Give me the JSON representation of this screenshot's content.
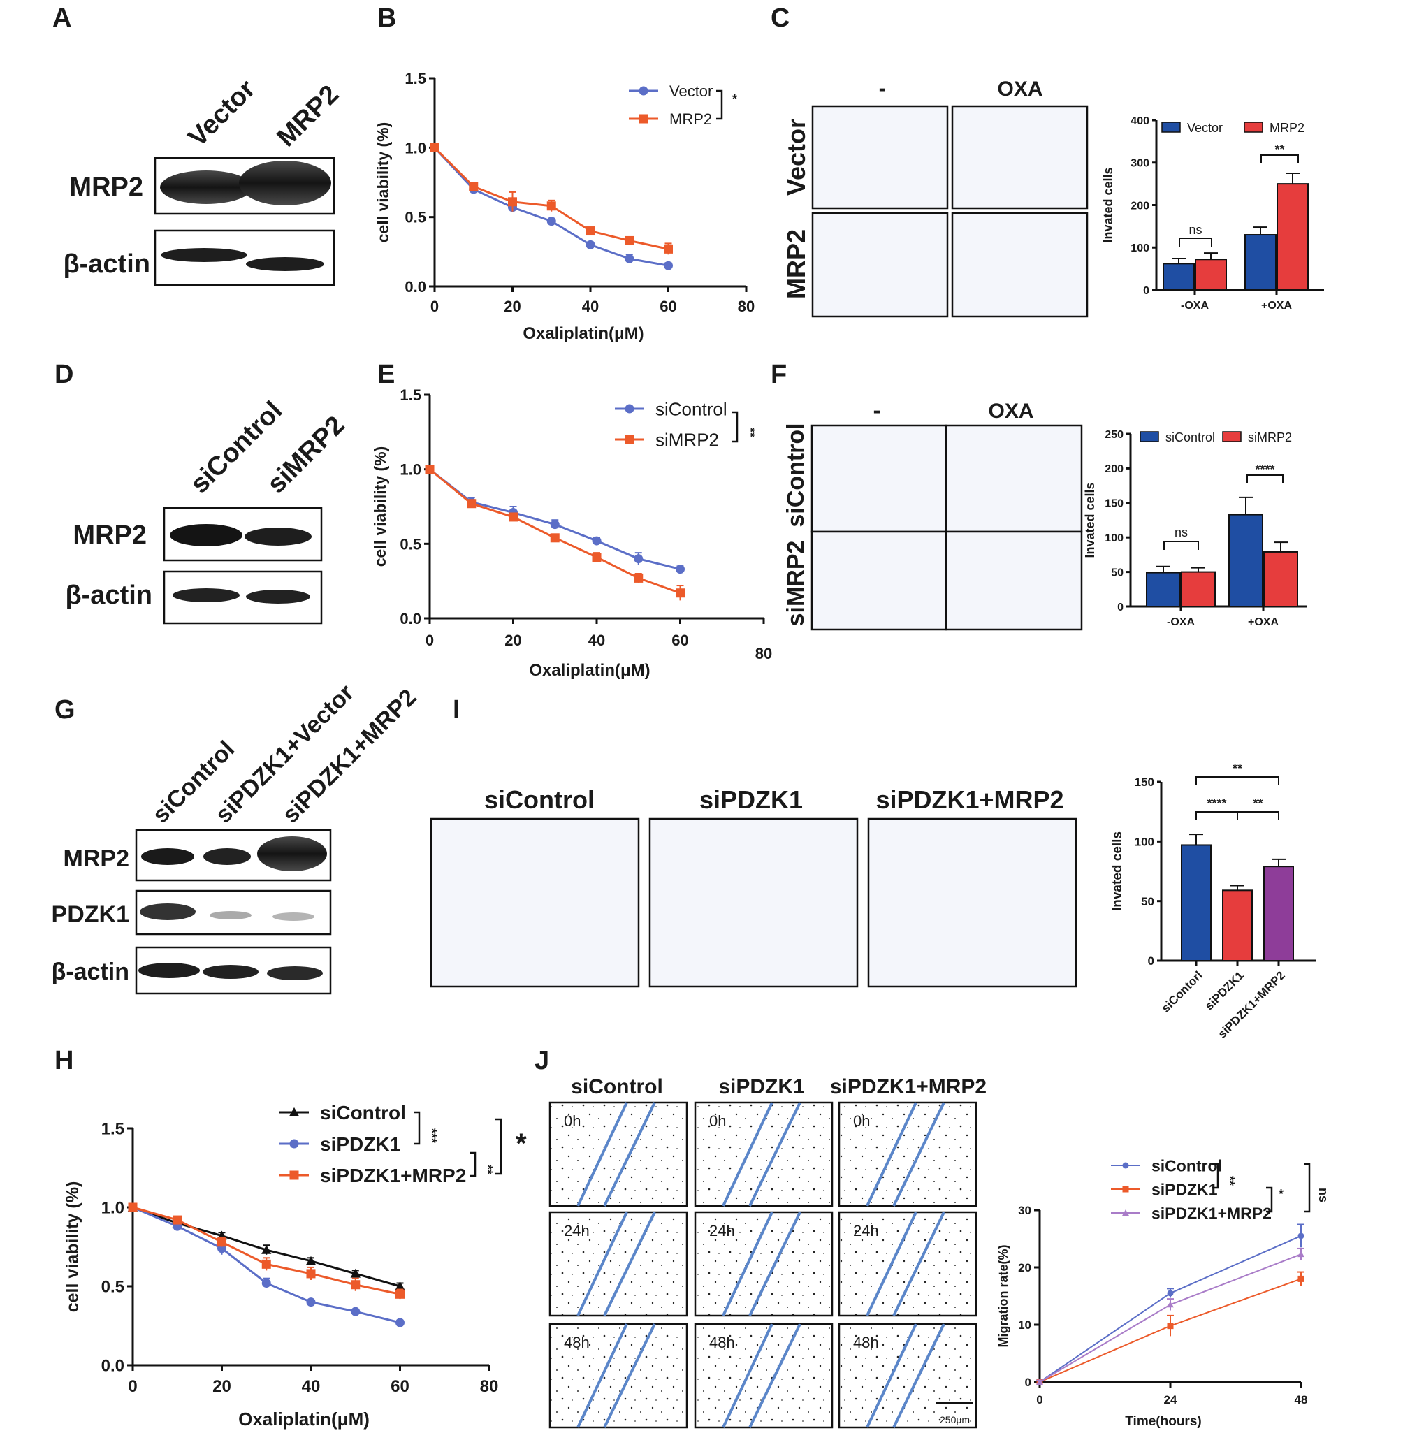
{
  "colors": {
    "blue": "#1f4ea3",
    "red": "#e63d3d",
    "purple": "#8e3d99",
    "lineBlue": "#5b6ec7",
    "lineOrange": "#ec5a2a",
    "lavender": "#a97cc8",
    "black": "#111111"
  },
  "panel_letters": [
    "A",
    "B",
    "C",
    "D",
    "E",
    "F",
    "G",
    "H",
    "I",
    "J"
  ],
  "panelA": {
    "lanes": [
      "Vector",
      "MRP2"
    ],
    "rows": [
      "MRP2",
      "β-actin"
    ]
  },
  "panelD": {
    "lanes": [
      "siControl",
      "siMRP2"
    ],
    "rows": [
      "MRP2",
      "β-actin"
    ]
  },
  "panelG": {
    "lanes": [
      "siControl",
      "siPDZK1+Vector",
      "siPDZK1+MRP2"
    ],
    "rows": [
      "MRP2",
      "PDZK1",
      "β-actin"
    ]
  },
  "panelC_images": {
    "cols": [
      "-",
      "OXA"
    ],
    "rows": [
      "Vector",
      "MRP2"
    ]
  },
  "panelF_images": {
    "cols": [
      "-",
      "OXA"
    ],
    "rows": [
      "siControl",
      "siMRP2"
    ]
  },
  "panelI_images": {
    "cols": [
      "siControl",
      "siPDZK1",
      "siPDZK1+MRP2"
    ]
  },
  "panelJ_images": {
    "cols": [
      "siControl",
      "siPDZK1",
      "siPDZK1+MRP2"
    ],
    "rows": [
      "0h",
      "24h",
      "48h"
    ],
    "scale_bar": "250μm"
  },
  "chart_data": [
    {
      "id": "B",
      "type": "line",
      "xlabel": "Oxaliplatin(μM)",
      "ylabel": "cell viability (%)",
      "xlim": [
        0,
        80
      ],
      "ylim": [
        0,
        1.5
      ],
      "xticks": [
        0,
        20,
        40,
        60,
        80
      ],
      "yticks": [
        "0.0",
        "0.5",
        "1.0",
        "1.5"
      ],
      "x": [
        0,
        10,
        20,
        30,
        40,
        50,
        60
      ],
      "series": [
        {
          "name": "Vector",
          "values": [
            1.0,
            0.7,
            0.57,
            0.47,
            0.3,
            0.2,
            0.15
          ],
          "err": [
            0.02,
            0.02,
            0.03,
            0.02,
            0.02,
            0.03,
            0.02
          ]
        },
        {
          "name": "MRP2",
          "values": [
            1.0,
            0.72,
            0.61,
            0.58,
            0.4,
            0.33,
            0.27
          ],
          "err": [
            0.02,
            0.02,
            0.07,
            0.04,
            0.02,
            0.02,
            0.04
          ]
        }
      ],
      "sig": [
        "*"
      ]
    },
    {
      "id": "C",
      "type": "bar",
      "ylabel": "Invated cells",
      "ylim": [
        0,
        400
      ],
      "yticks": [
        "0",
        "100",
        "200",
        "300",
        "400"
      ],
      "categories": [
        "-OXA",
        "+OXA"
      ],
      "series": [
        {
          "name": "Vector",
          "values": [
            62,
            130
          ],
          "err": [
            12,
            18
          ]
        },
        {
          "name": "MRP2",
          "values": [
            72,
            250
          ],
          "err": [
            15,
            25
          ]
        }
      ],
      "sig": [
        "ns",
        "**"
      ]
    },
    {
      "id": "E",
      "type": "line",
      "xlabel": "Oxaliplatin(μM)",
      "ylabel": "cell viability (%)",
      "xlim": [
        0,
        80
      ],
      "ylim": [
        0,
        1.5
      ],
      "xticks": [
        0,
        20,
        40,
        60,
        80
      ],
      "yticks": [
        "0.0",
        "0.5",
        "1.0",
        "1.5"
      ],
      "x": [
        0,
        10,
        20,
        30,
        40,
        50,
        60
      ],
      "series": [
        {
          "name": "siControl",
          "values": [
            1.0,
            0.78,
            0.71,
            0.63,
            0.52,
            0.4,
            0.33
          ],
          "err": [
            0.02,
            0.03,
            0.04,
            0.03,
            0.02,
            0.04,
            0.02
          ]
        },
        {
          "name": "siMRP2",
          "values": [
            1.0,
            0.77,
            0.68,
            0.54,
            0.41,
            0.27,
            0.17
          ],
          "err": [
            0.02,
            0.02,
            0.02,
            0.02,
            0.03,
            0.03,
            0.05
          ]
        }
      ],
      "sig": [
        "**"
      ]
    },
    {
      "id": "F",
      "type": "bar",
      "ylabel": "Invated cells",
      "ylim": [
        0,
        250
      ],
      "yticks": [
        "0",
        "50",
        "100",
        "150",
        "200",
        "250"
      ],
      "categories": [
        "-OXA",
        "+OXA"
      ],
      "series": [
        {
          "name": "siControl",
          "values": [
            49,
            133
          ],
          "err": [
            9,
            25
          ]
        },
        {
          "name": "siMRP2",
          "values": [
            50,
            79
          ],
          "err": [
            6,
            14
          ]
        }
      ],
      "sig": [
        "ns",
        "****"
      ]
    },
    {
      "id": "I",
      "type": "bar",
      "ylabel": "Invated cells",
      "ylim": [
        0,
        150
      ],
      "yticks": [
        "0",
        "50",
        "100",
        "150"
      ],
      "categories": [
        "siContorl",
        "siPDZK1",
        "siPDZK1+MRP2"
      ],
      "values": [
        97,
        59,
        79
      ],
      "err": [
        9,
        4,
        6
      ],
      "sig": [
        "**",
        "****",
        "**"
      ]
    },
    {
      "id": "H",
      "type": "line",
      "xlabel": "Oxaliplatin(μM)",
      "ylabel": "cell viability (%)",
      "xlim": [
        0,
        80
      ],
      "ylim": [
        0,
        1.5
      ],
      "xticks": [
        0,
        20,
        40,
        60,
        80
      ],
      "yticks": [
        "0.0",
        "0.5",
        "1.0",
        "1.5"
      ],
      "x": [
        0,
        10,
        20,
        30,
        40,
        50,
        60
      ],
      "series": [
        {
          "name": "siControl",
          "values": [
            1.0,
            0.9,
            0.82,
            0.73,
            0.66,
            0.58,
            0.5
          ],
          "err": [
            0.01,
            0.02,
            0.02,
            0.03,
            0.02,
            0.02,
            0.02
          ]
        },
        {
          "name": "siPDZK1",
          "values": [
            1.0,
            0.88,
            0.74,
            0.52,
            0.4,
            0.34,
            0.27
          ],
          "err": [
            0.01,
            0.02,
            0.04,
            0.03,
            0.01,
            0.01,
            0.01
          ]
        },
        {
          "name": "siPDZK1+MRP2",
          "values": [
            1.0,
            0.92,
            0.78,
            0.64,
            0.58,
            0.51,
            0.45
          ],
          "err": [
            0.01,
            0.02,
            0.03,
            0.04,
            0.04,
            0.04,
            0.03
          ]
        }
      ],
      "sig": [
        "***",
        "**",
        "*"
      ]
    },
    {
      "id": "J",
      "type": "line",
      "xlabel": "Time(hours)",
      "ylabel": "Migration rate(%)",
      "xlim": [
        0,
        48
      ],
      "ylim": [
        0,
        30
      ],
      "xticks": [
        0,
        24,
        48
      ],
      "yticks": [
        "0",
        "10",
        "20",
        "30"
      ],
      "x": [
        0,
        24,
        48
      ],
      "series": [
        {
          "name": "siControl",
          "values": [
            0,
            15.5,
            25.5
          ],
          "err": [
            0.3,
            0.8,
            2.0
          ]
        },
        {
          "name": "siPDZK1",
          "values": [
            0,
            9.8,
            18
          ],
          "err": [
            0.3,
            1.8,
            1.2
          ]
        },
        {
          "name": "siPDZK1+MRP2",
          "values": [
            0,
            13.5,
            22.3
          ],
          "err": [
            0.3,
            1.0,
            1.0
          ]
        }
      ],
      "sig": [
        "**",
        "*",
        "ns"
      ]
    }
  ]
}
